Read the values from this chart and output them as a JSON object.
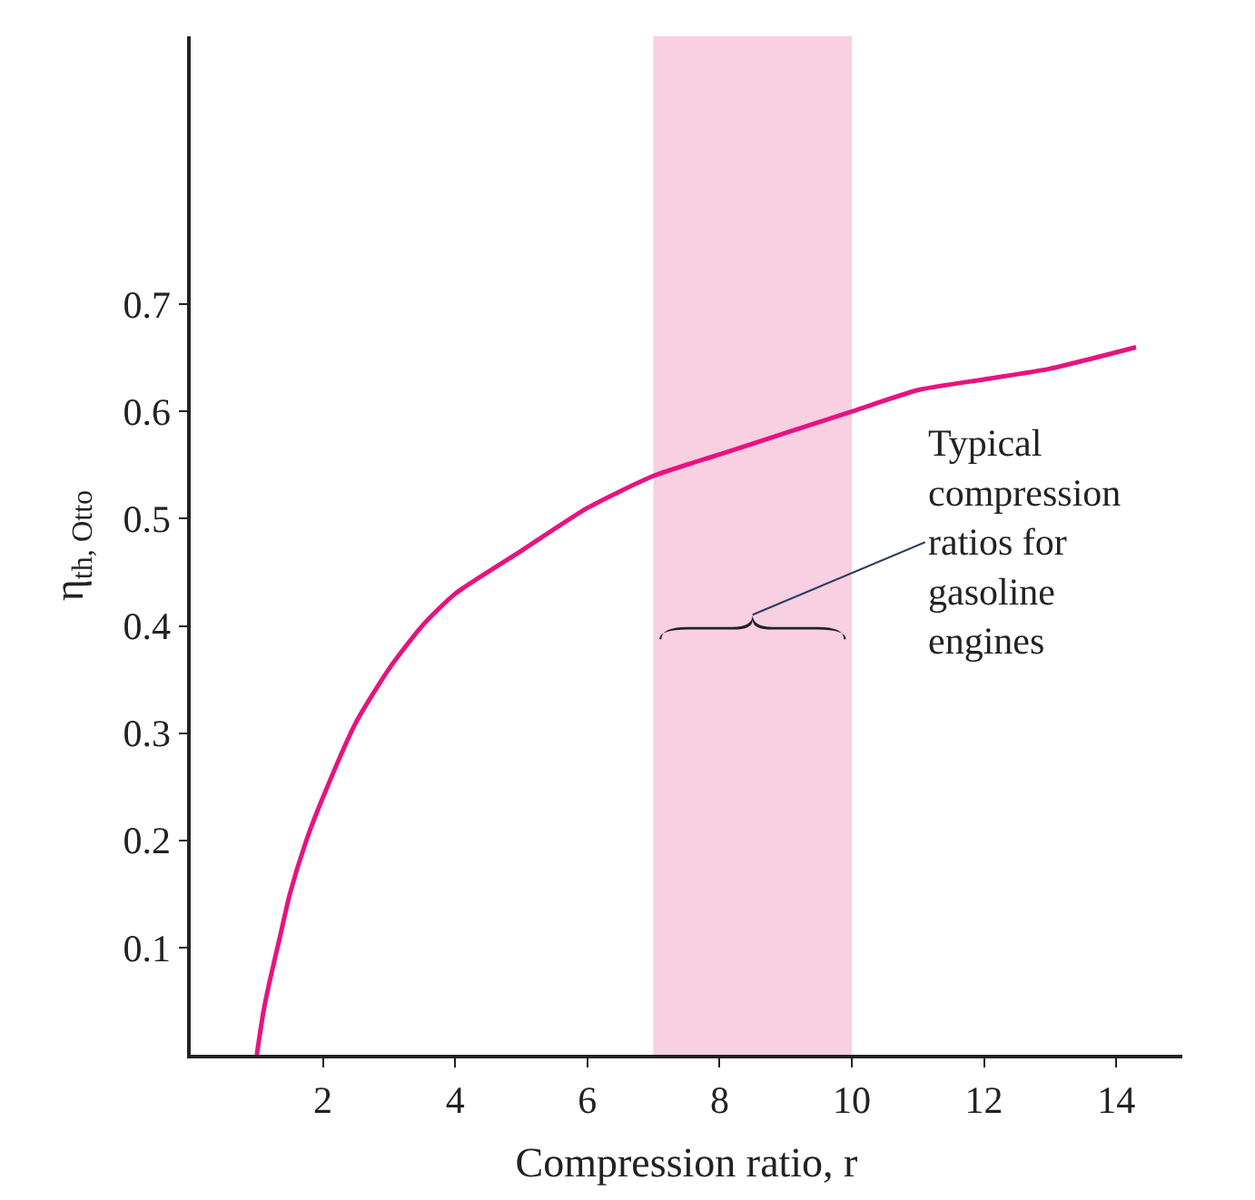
{
  "chart_data": {
    "type": "line",
    "xlabel": "Compression ratio, r",
    "ylabel": "η$_{th, Otto}$",
    "x": [
      1,
      1.1,
      1.2,
      1.35,
      1.5,
      1.75,
      2,
      2.5,
      3,
      3.5,
      4,
      5,
      6,
      7,
      8,
      9,
      10,
      11,
      12,
      13,
      14.3
    ],
    "series": [
      {
        "color": "#e8137f",
        "values": [
          0,
          0.04,
          0.07,
          0.11,
          0.15,
          0.2,
          0.24,
          0.31,
          0.36,
          0.4,
          0.43,
          0.47,
          0.51,
          0.54,
          0.56,
          0.58,
          0.6,
          0.62,
          0.63,
          0.64,
          0.66
        ]
      }
    ],
    "xlim": [
      0,
      15
    ],
    "ylim": [
      0,
      0.95
    ],
    "xticks": [
      2,
      4,
      6,
      8,
      10,
      12,
      14
    ],
    "yticks": [
      0.1,
      0.2,
      0.3,
      0.4,
      0.5,
      0.6,
      0.7
    ],
    "bands": [
      {
        "axis": "x",
        "from": 7,
        "to": 10,
        "color": "#f9cfe2"
      }
    ],
    "annotations": [
      "Typical\ncompression\nratios for\ngasoline\nengines"
    ],
    "grid": false,
    "legend": false,
    "marker": "none",
    "line_style": "solid"
  }
}
